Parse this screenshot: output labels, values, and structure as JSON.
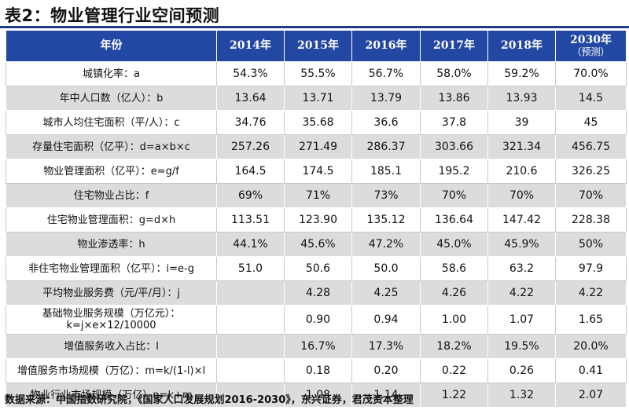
{
  "title": "表2：物业管理行业空间预测",
  "table": {
    "header": [
      "年份",
      "2014年",
      "2015年",
      "2016年",
      "2017年",
      "2018年"
    ],
    "header_last": {
      "main": "2030年",
      "sub": "（预测）"
    },
    "rows": [
      {
        "label": [
          "城镇化率：a"
        ],
        "values": [
          "54.3%",
          "55.5%",
          "56.7%",
          "58.0%",
          "59.2%",
          "70.0%"
        ]
      },
      {
        "label": [
          "年中人口数（亿人）：b"
        ],
        "values": [
          "13.64",
          "13.71",
          "13.79",
          "13.86",
          "13.93",
          "14.5"
        ]
      },
      {
        "label": [
          "城市人均住宅面积（平/人）：c"
        ],
        "values": [
          "34.76",
          "35.68",
          "36.6",
          "37.8",
          "39",
          "45"
        ]
      },
      {
        "label": [
          "存量住宅面积（亿平）：d=a×b×c"
        ],
        "values": [
          "257.26",
          "271.49",
          "286.37",
          "303.66",
          "321.34",
          "456.75"
        ]
      },
      {
        "label": [
          "物业管理面积（亿平）：e=g/f"
        ],
        "values": [
          "164.5",
          "174.5",
          "185.1",
          "195.2",
          "210.6",
          "326.25"
        ]
      },
      {
        "label": [
          "住宅物业占比：f"
        ],
        "values": [
          "69%",
          "71%",
          "73%",
          "70%",
          "70%",
          "70%"
        ]
      },
      {
        "label": [
          "住宅物业管理面积：g=d×h"
        ],
        "values": [
          "113.51",
          "123.90",
          "135.12",
          "136.64",
          "147.42",
          "228.38"
        ]
      },
      {
        "label": [
          "物业渗透率：h"
        ],
        "values": [
          "44.1%",
          "45.6%",
          "47.2%",
          "45.0%",
          "45.9%",
          "50%"
        ]
      },
      {
        "label": [
          "非住宅物业管理面积（亿平）：i=e-g"
        ],
        "values": [
          "51.0",
          "50.6",
          "50.0",
          "58.6",
          "63.2",
          "97.9"
        ]
      },
      {
        "label": [
          "平均物业服务费（元/平/月）：j"
        ],
        "values": [
          "",
          "4.28",
          "4.25",
          "4.26",
          "4.22",
          "4.22"
        ]
      },
      {
        "label": [
          "基础物业服务规模（万亿元）：",
          "k=j×e×12/10000"
        ],
        "values": [
          "",
          "0.90",
          "0.94",
          "1.00",
          "1.07",
          "1.65"
        ]
      },
      {
        "label": [
          "增值服务收入占比：l"
        ],
        "values": [
          "",
          "16.7%",
          "17.3%",
          "18.2%",
          "19.5%",
          "20.0%"
        ]
      },
      {
        "label": [
          "增值服务市场规模（万亿）：m=k/(1-l)×l"
        ],
        "values": [
          "",
          "0.18",
          "0.20",
          "0.22",
          "0.26",
          "0.41"
        ]
      },
      {
        "label": [
          "物业行业市场规模（万亿）n=k+m"
        ],
        "values": [
          "",
          "1.08",
          "1.14",
          "1.22",
          "1.32",
          "2.07"
        ]
      }
    ]
  },
  "source": "数据来源：中国指数研究院，《国家人口发展规划2016-2030》，东兴证券，君茂资本整理"
}
